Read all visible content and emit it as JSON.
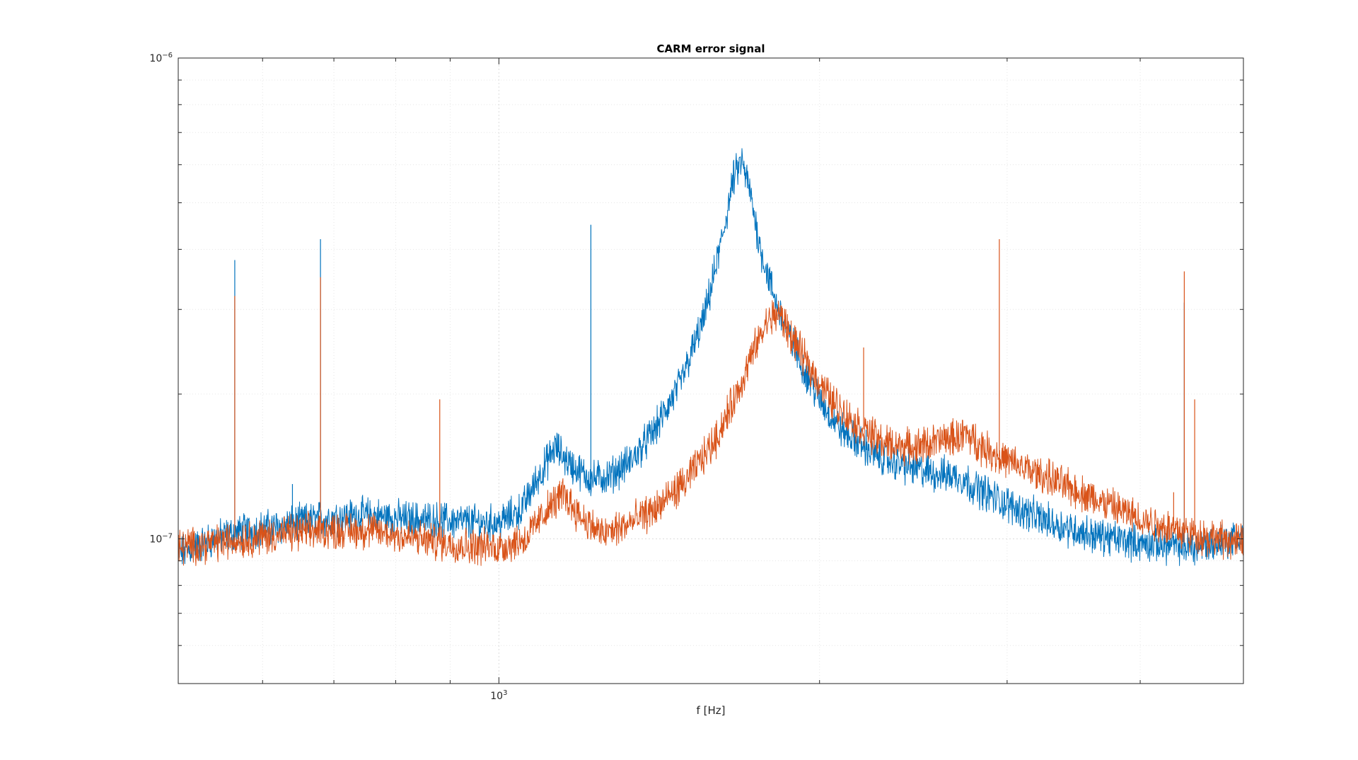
{
  "chart_data": {
    "type": "line",
    "title": "CARM error signal",
    "xlabel": "f [Hz]",
    "ylabel": "",
    "x_scale": "log",
    "y_scale": "log",
    "xlim": [
      500,
      5000
    ],
    "ylim": [
      5e-08,
      1e-06
    ],
    "grid": true,
    "x_ticks": [
      {
        "value": 1000,
        "base": "10",
        "exp": "3"
      }
    ],
    "y_ticks": [
      {
        "value": 1e-07,
        "base": "10",
        "exp": "−7"
      },
      {
        "value": 1e-06,
        "base": "10",
        "exp": "−6"
      }
    ],
    "colors": {
      "blue": "#0072BD",
      "orange": "#D95319"
    },
    "series": [
      {
        "color": "#0072BD",
        "noise": 0.03,
        "points": [
          [
            500,
            9.3e-08
          ],
          [
            540,
            1e-07
          ],
          [
            580,
            1.04e-07
          ],
          [
            620,
            1.06e-07
          ],
          [
            680,
            1.1e-07
          ],
          [
            750,
            1.12e-07
          ],
          [
            820,
            1.1e-07
          ],
          [
            900,
            1.09e-07
          ],
          [
            960,
            1.08e-07
          ],
          [
            1000,
            1.08e-07
          ],
          [
            1050,
            1.15e-07
          ],
          [
            1090,
            1.35e-07
          ],
          [
            1130,
            1.55e-07
          ],
          [
            1170,
            1.42e-07
          ],
          [
            1220,
            1.33e-07
          ],
          [
            1270,
            1.35e-07
          ],
          [
            1330,
            1.45e-07
          ],
          [
            1400,
            1.68e-07
          ],
          [
            1480,
            2.1e-07
          ],
          [
            1560,
            2.9e-07
          ],
          [
            1620,
            4.2e-07
          ],
          [
            1660,
            5.6e-07
          ],
          [
            1690,
            6.1e-07
          ],
          [
            1720,
            5.3e-07
          ],
          [
            1760,
            4e-07
          ],
          [
            1820,
            3.1e-07
          ],
          [
            1900,
            2.45e-07
          ],
          [
            2000,
            1.95e-07
          ],
          [
            2100,
            1.68e-07
          ],
          [
            2250,
            1.5e-07
          ],
          [
            2400,
            1.42e-07
          ],
          [
            2550,
            1.37e-07
          ],
          [
            2700,
            1.35e-07
          ],
          [
            2800,
            1.28e-07
          ],
          [
            3000,
            1.18e-07
          ],
          [
            3300,
            1.08e-07
          ],
          [
            3600,
            1.02e-07
          ],
          [
            4000,
            9.8e-08
          ],
          [
            4500,
            9.6e-08
          ],
          [
            5000,
            1.01e-07
          ]
        ],
        "spikes": [
          [
            565,
            3.8e-07
          ],
          [
            640,
            1.3e-07
          ],
          [
            680,
            4.2e-07
          ],
          [
            1220,
            4.5e-07
          ],
          [
            4400,
            3.1e-07
          ]
        ]
      },
      {
        "color": "#D95319",
        "noise": 0.03,
        "points": [
          [
            500,
            9.6e-08
          ],
          [
            560,
            9.9e-08
          ],
          [
            620,
            1.02e-07
          ],
          [
            680,
            1.04e-07
          ],
          [
            760,
            1.04e-07
          ],
          [
            840,
            1e-07
          ],
          [
            920,
            9.7e-08
          ],
          [
            1000,
            9.6e-08
          ],
          [
            1060,
            1e-07
          ],
          [
            1110,
            1.15e-07
          ],
          [
            1150,
            1.24e-07
          ],
          [
            1190,
            1.12e-07
          ],
          [
            1250,
            1.02e-07
          ],
          [
            1320,
            1.07e-07
          ],
          [
            1400,
            1.15e-07
          ],
          [
            1500,
            1.32e-07
          ],
          [
            1600,
            1.62e-07
          ],
          [
            1680,
            2.05e-07
          ],
          [
            1740,
            2.5e-07
          ],
          [
            1790,
            2.85e-07
          ],
          [
            1830,
            2.95e-07
          ],
          [
            1880,
            2.65e-07
          ],
          [
            1950,
            2.3e-07
          ],
          [
            2050,
            1.95e-07
          ],
          [
            2150,
            1.75e-07
          ],
          [
            2300,
            1.58e-07
          ],
          [
            2450,
            1.55e-07
          ],
          [
            2600,
            1.6e-07
          ],
          [
            2750,
            1.65e-07
          ],
          [
            2850,
            1.55e-07
          ],
          [
            3000,
            1.45e-07
          ],
          [
            3300,
            1.33e-07
          ],
          [
            3600,
            1.22e-07
          ],
          [
            4000,
            1.1e-07
          ],
          [
            4500,
            1.02e-07
          ],
          [
            5000,
            9.8e-08
          ]
        ],
        "spikes": [
          [
            565,
            3.2e-07
          ],
          [
            680,
            3.5e-07
          ],
          [
            880,
            1.95e-07
          ],
          [
            2200,
            2.5e-07
          ],
          [
            2500,
            1.65e-07
          ],
          [
            2950,
            4.2e-07
          ],
          [
            4300,
            1.25e-07
          ],
          [
            4400,
            3.6e-07
          ],
          [
            4500,
            1.95e-07
          ]
        ]
      }
    ]
  }
}
